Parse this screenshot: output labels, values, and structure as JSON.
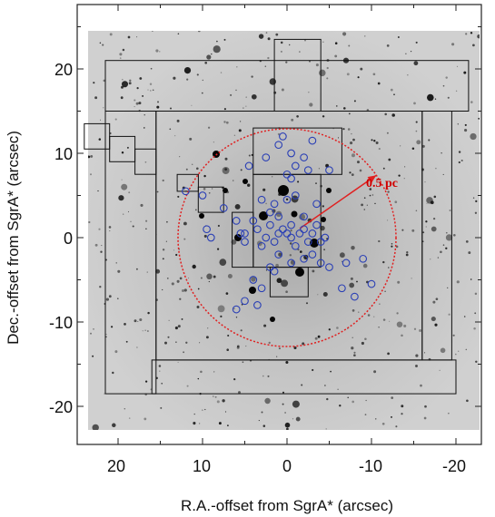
{
  "figure": {
    "xlabel": "R.A.-offset from SgrA* (arcsec)",
    "ylabel": "Dec.-offset from SgrA* (arcsec)",
    "x_ticks": [
      "20",
      "10",
      "0",
      "-10",
      "-20"
    ],
    "y_ticks": [
      "20",
      "10",
      "0",
      "-10",
      "-20"
    ],
    "annotation": "0.5 pc",
    "colors": {
      "background_image": "#c8c8c8",
      "stars": "#111111",
      "circle": "#e02020",
      "markers": "#2a3fb5",
      "frames": "#111111"
    }
  },
  "chart_data": {
    "type": "scatter",
    "xlabel": "R.A.-offset from SgrA* (arcsec)",
    "ylabel": "Dec.-offset from SgrA* (arcsec)",
    "xlim": [
      25,
      -25
    ],
    "ylim": [
      -25,
      25
    ],
    "x_reversed": true,
    "annotation": {
      "text": "0.5 pc",
      "circle_center": [
        0,
        0
      ],
      "circle_radius_arcsec": 12.9
    },
    "points": [
      [
        12,
        5.5
      ],
      [
        10,
        5
      ],
      [
        9.5,
        1
      ],
      [
        9,
        0
      ],
      [
        7.5,
        3.5
      ],
      [
        6,
        2
      ],
      [
        5.5,
        0.5
      ],
      [
        5,
        -0.5
      ],
      [
        5,
        0.5
      ],
      [
        4,
        2
      ],
      [
        3.5,
        1
      ],
      [
        3,
        -1
      ],
      [
        2.5,
        0
      ],
      [
        2,
        3
      ],
      [
        2,
        1.5
      ],
      [
        1.5,
        -0.5
      ],
      [
        1,
        0.5
      ],
      [
        1,
        2.5
      ],
      [
        0.5,
        1
      ],
      [
        0,
        0.5
      ],
      [
        -0.5,
        0
      ],
      [
        -0.5,
        1.5
      ],
      [
        -1,
        -1
      ],
      [
        -1.5,
        0.5
      ],
      [
        -2,
        1
      ],
      [
        -2,
        2.5
      ],
      [
        -2.5,
        -0.5
      ],
      [
        -3,
        0.5
      ],
      [
        -3.5,
        1.5
      ],
      [
        -4,
        -0.5
      ],
      [
        -4.5,
        0
      ],
      [
        1.5,
        4
      ],
      [
        0,
        4.5
      ],
      [
        -1,
        5
      ],
      [
        -3.5,
        4
      ],
      [
        2.5,
        9.5
      ],
      [
        1,
        11
      ],
      [
        0.5,
        12
      ],
      [
        -0.5,
        10
      ],
      [
        -1,
        8.5
      ],
      [
        -2,
        9.5
      ],
      [
        -2.5,
        8
      ],
      [
        0,
        7.5
      ],
      [
        -0.5,
        7
      ],
      [
        -3,
        11.5
      ],
      [
        -5,
        8
      ],
      [
        4.5,
        8.5
      ],
      [
        3,
        4.5
      ],
      [
        1,
        -2
      ],
      [
        2,
        -3.5
      ],
      [
        1.5,
        -4
      ],
      [
        4,
        -5
      ],
      [
        3,
        -6
      ],
      [
        5,
        -7.5
      ],
      [
        6,
        -8.5
      ],
      [
        3.5,
        -8
      ],
      [
        -0.5,
        -3
      ],
      [
        -2,
        -2.5
      ],
      [
        -3,
        -2
      ],
      [
        -4,
        -3
      ],
      [
        -5,
        -3.5
      ],
      [
        -7,
        -3
      ],
      [
        -9,
        -2.5
      ],
      [
        -6.5,
        -6
      ],
      [
        -10,
        -5.5
      ],
      [
        -8,
        -7
      ]
    ],
    "frames": [
      {
        "x": [
          21.5,
          -21.5
        ],
        "y": [
          15,
          21
        ]
      },
      {
        "x": [
          21.5,
          15.5
        ],
        "y": [
          -18.5,
          15
        ]
      },
      {
        "x": [
          15.5,
          -16
        ],
        "y": [
          -14.5,
          15
        ]
      },
      {
        "x": [
          16,
          -20
        ],
        "y": [
          -18.5,
          -14.5
        ]
      },
      {
        "x": [
          -16,
          -19.5
        ],
        "y": [
          -14.5,
          15
        ]
      },
      {
        "x": [
          1.5,
          -4
        ],
        "y": [
          15,
          23.5
        ]
      },
      {
        "x": [
          4,
          -6.5
        ],
        "y": [
          7.5,
          13
        ]
      },
      {
        "x": [
          24,
          21
        ],
        "y": [
          10.5,
          13.5
        ]
      },
      {
        "x": [
          21,
          18
        ],
        "y": [
          9,
          12
        ]
      },
      {
        "x": [
          18,
          15.5
        ],
        "y": [
          7.5,
          10.5
        ]
      },
      {
        "x": [
          13,
          10.5
        ],
        "y": [
          5.5,
          7.5
        ]
      },
      {
        "x": [
          10.5,
          7.5
        ],
        "y": [
          3,
          6
        ]
      },
      {
        "x": [
          6.5,
          4
        ],
        "y": [
          -3.5,
          3
        ]
      },
      {
        "x": [
          4,
          -4
        ],
        "y": [
          -3.5,
          7.5
        ]
      },
      {
        "x": [
          2,
          -2.5
        ],
        "y": [
          -7,
          -3.5
        ]
      }
    ]
  }
}
